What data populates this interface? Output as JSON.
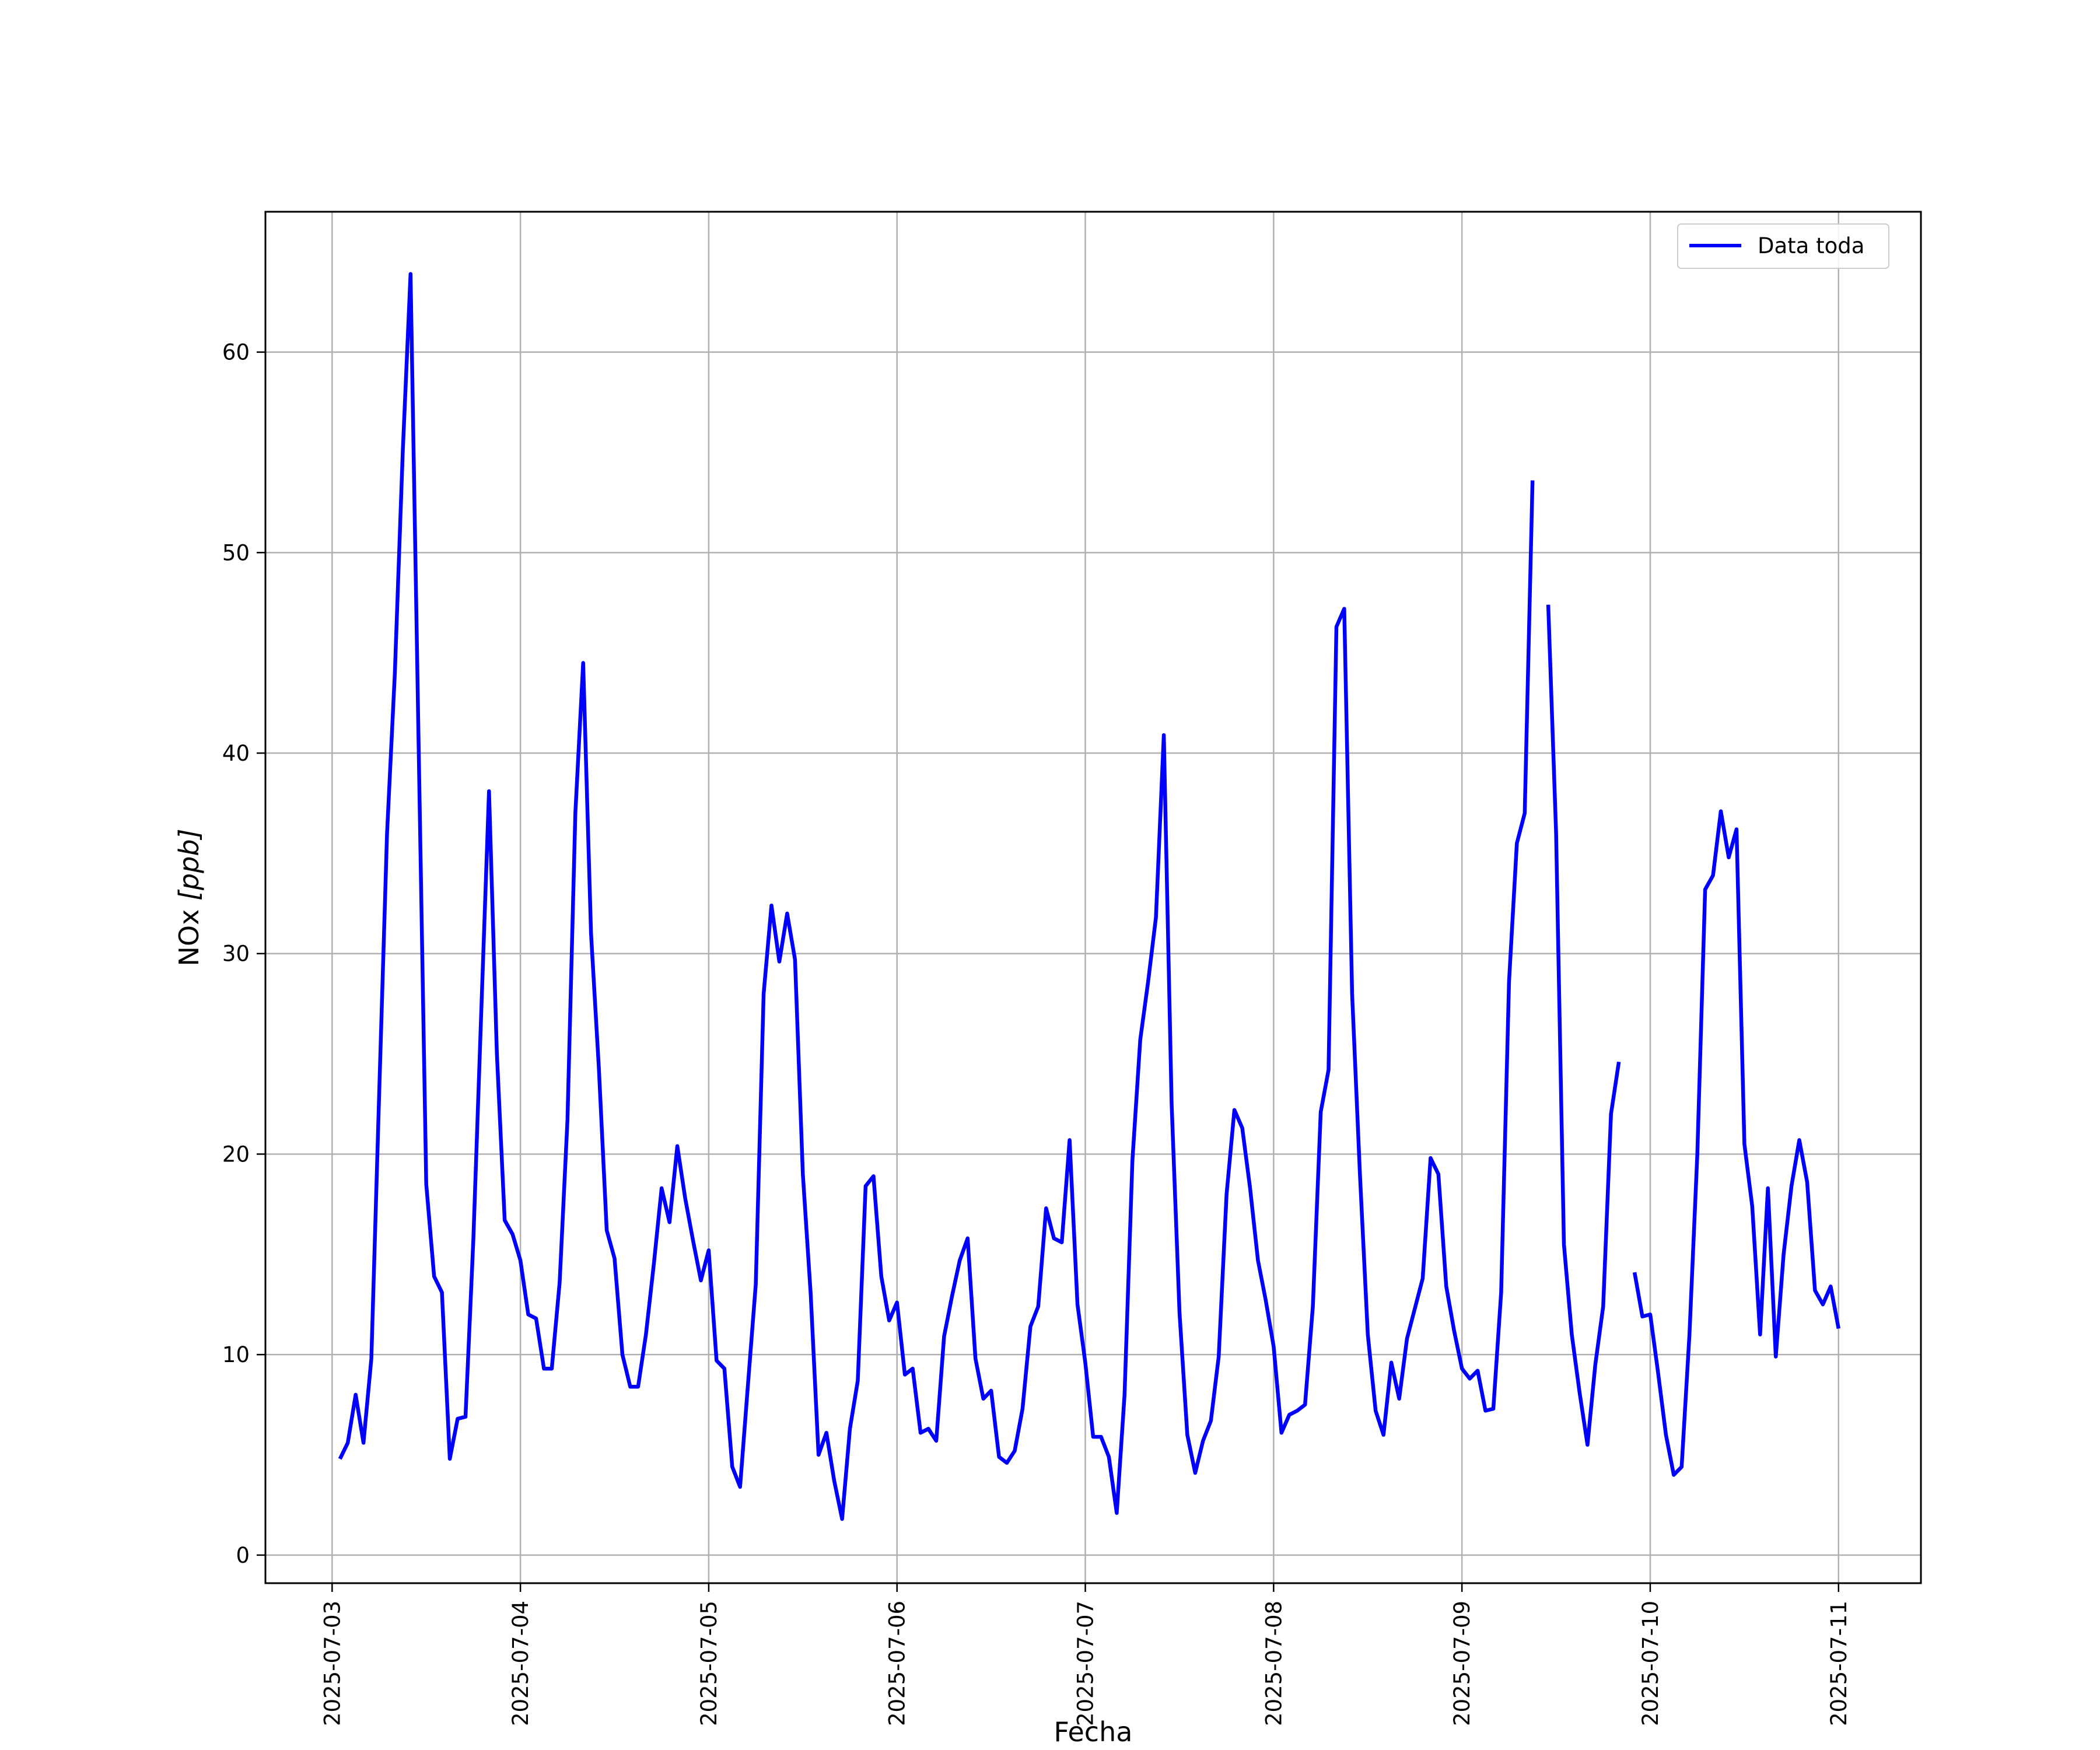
{
  "chart_data": {
    "type": "line",
    "title": "",
    "xlabel": "Fecha",
    "ylabel_main": "NOx ",
    "ylabel_unit": "[ppb]",
    "x_ticks": [
      "2025-07-03",
      "2025-07-04",
      "2025-07-05",
      "2025-07-06",
      "2025-07-07",
      "2025-07-08",
      "2025-07-09",
      "2025-07-10",
      "2025-07-11"
    ],
    "y_ticks": [
      0,
      10,
      20,
      30,
      40,
      50,
      60
    ],
    "xlim": [
      "2025-07-02 15:30",
      "2025-07-11 10:30"
    ],
    "ylim": [
      -1.4,
      67.0
    ],
    "grid": true,
    "legend": "top-right",
    "line_color": "#0000ff",
    "series": [
      {
        "name": "Data toda",
        "segments": [
          {
            "start": "2025-07-03 01:00",
            "step_hours": 1,
            "values": [
              4.8,
              5.6,
              8.0,
              5.6,
              9.8,
              23.0,
              36.0,
              44.0,
              55.0,
              63.9,
              41.0,
              18.5,
              13.9,
              13.1,
              4.8,
              6.8,
              6.9,
              15.7,
              27.0,
              38.1,
              25.0,
              16.7,
              16.0,
              14.7,
              12.0,
              11.8,
              9.3,
              9.3,
              13.6,
              21.7,
              37.0,
              44.5,
              31.0,
              24.3,
              16.2,
              14.8,
              10.0,
              8.4,
              8.4,
              11.0,
              14.5,
              18.3,
              16.6,
              20.4,
              17.8,
              15.7,
              13.7,
              15.2,
              9.7,
              9.3,
              4.4,
              3.4,
              8.5,
              13.5,
              28.0,
              32.4,
              29.6,
              32.0,
              29.7,
              19.0,
              13.0,
              5.0,
              6.1,
              3.7,
              1.8,
              6.3,
              8.7,
              18.4,
              18.9,
              13.9,
              11.7,
              12.6,
              9.0,
              9.3,
              6.1,
              6.3,
              5.7,
              10.9,
              12.9,
              14.7,
              15.8,
              9.8,
              7.8,
              8.2,
              4.9,
              4.6,
              5.2,
              7.3,
              11.4,
              12.4,
              17.3,
              15.8,
              15.6,
              20.7,
              12.5,
              9.6,
              5.9,
              5.9,
              4.9,
              2.1,
              8.0,
              19.7,
              25.7,
              28.6,
              31.8,
              40.9,
              22.5,
              12.1,
              6.0,
              4.1,
              5.7,
              6.7,
              9.9,
              18.0,
              22.2,
              21.3,
              18.3,
              14.7,
              12.7,
              10.4,
              6.1,
              7.0,
              7.2,
              7.5,
              12.4,
              22.1,
              24.2,
              46.3,
              47.2,
              28.0,
              19.0,
              11.0,
              7.2,
              6.0,
              9.6,
              7.8,
              10.8,
              12.3,
              13.8,
              19.8,
              19.0,
              13.4,
              11.2,
              9.3,
              8.8,
              9.2,
              7.2,
              7.3,
              13.1,
              28.6,
              35.5,
              37.0,
              53.6
            ]
          },
          {
            "start": "2025-07-09 11:00",
            "step_hours": 1,
            "values": [
              47.4,
              36.0,
              15.5,
              11.0,
              8.1,
              5.5,
              9.5,
              12.4,
              22.0,
              24.6
            ]
          },
          {
            "start": "2025-07-09 22:00",
            "step_hours": 1,
            "values": [
              14.1,
              11.9,
              12.0,
              9.1,
              6.0,
              4.0,
              4.4,
              11.0,
              20.0,
              33.2,
              33.9,
              37.1,
              34.8,
              36.2,
              20.5,
              17.4,
              11.0,
              18.3,
              9.9,
              15.0,
              18.4,
              20.7,
              18.6,
              13.2,
              12.5,
              13.4,
              11.3
            ]
          }
        ]
      }
    ]
  }
}
